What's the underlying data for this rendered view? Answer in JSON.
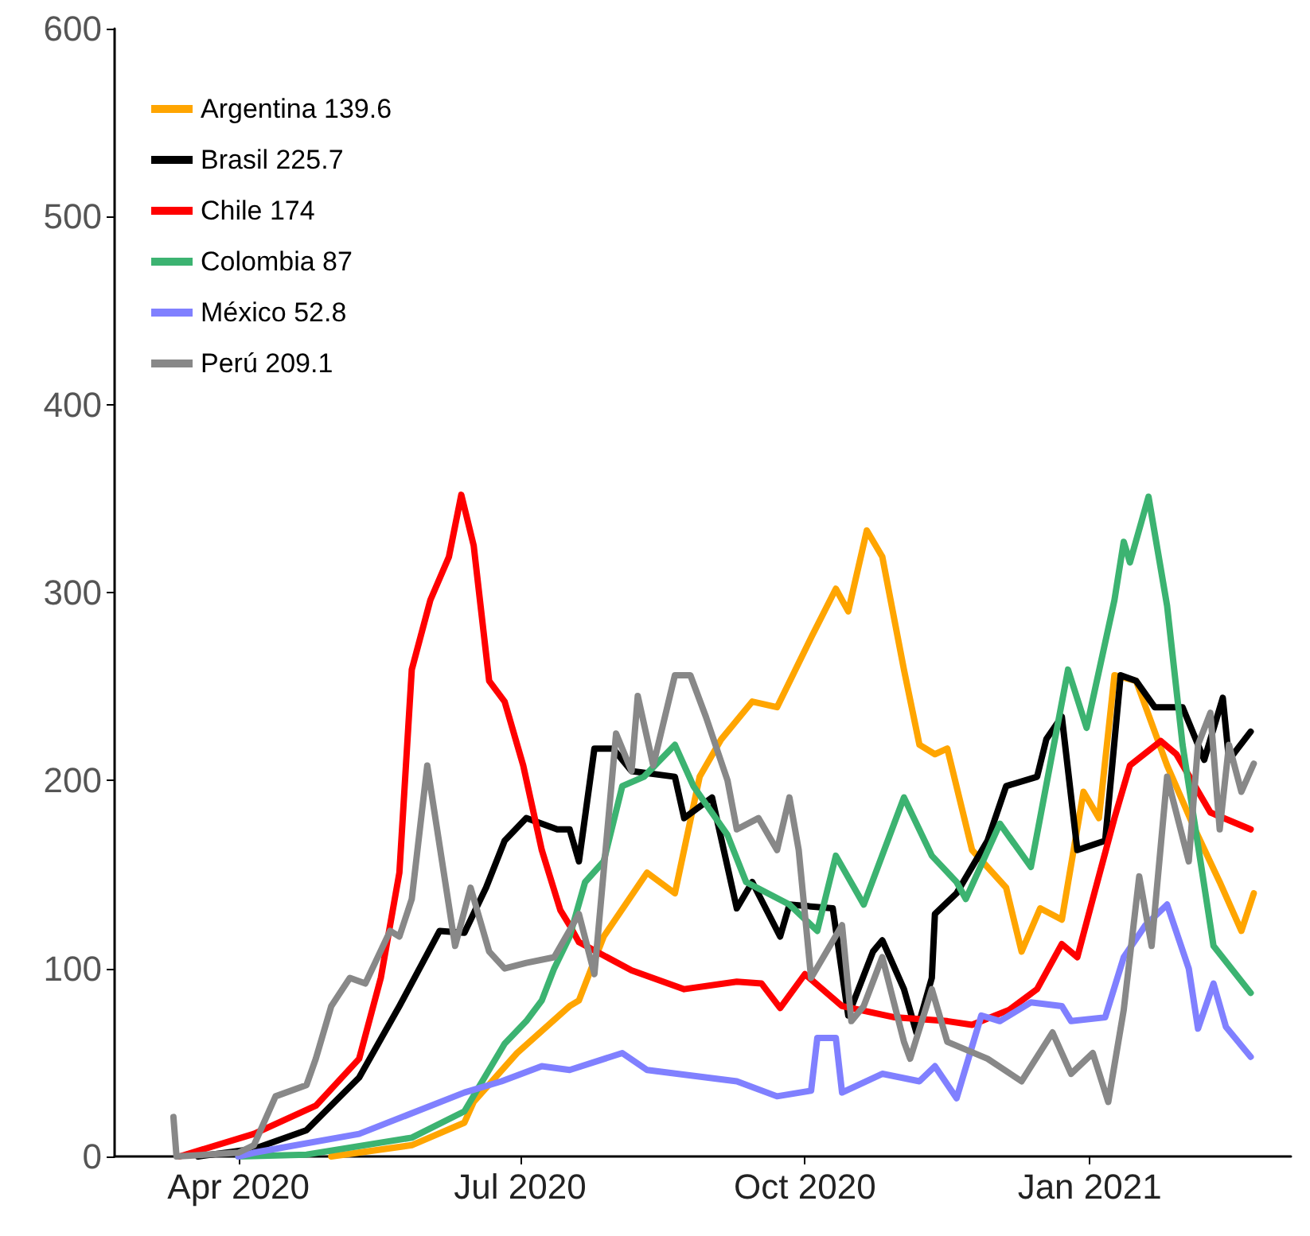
{
  "chart_data": {
    "type": "line",
    "xlim": [
      "2020-02-21",
      "2021-03-07"
    ],
    "ylim": [
      0,
      600
    ],
    "yticks": [
      0,
      100,
      200,
      300,
      400,
      500,
      600
    ],
    "xticks": [
      {
        "value": "2020-04-01",
        "label": "Apr 2020"
      },
      {
        "value": "2020-07-01",
        "label": "Jul 2020"
      },
      {
        "value": "2020-10-01",
        "label": "Oct 2020"
      },
      {
        "value": "2021-01-01",
        "label": "Jan 2021"
      }
    ],
    "grid": false,
    "legend": "top left",
    "marker": "none",
    "line_style": "solid",
    "series": [
      {
        "name": "Argentina 139.6",
        "color": "#ffa500",
        "x": [
          "2020-05-01",
          "2020-05-27",
          "2020-06-13",
          "2020-06-16",
          "2020-06-30",
          "2020-07-17",
          "2020-07-20",
          "2020-07-28",
          "2020-08-11",
          "2020-08-20",
          "2020-08-28",
          "2020-09-04",
          "2020-09-14",
          "2020-09-22",
          "2020-10-03",
          "2020-10-11",
          "2020-10-15",
          "2020-10-21",
          "2020-10-26",
          "2020-11-02",
          "2020-11-07",
          "2020-11-12",
          "2020-11-16",
          "2020-11-24",
          "2020-12-05",
          "2020-12-10",
          "2020-12-16",
          "2020-12-23",
          "2020-12-30",
          "2021-01-04",
          "2021-01-09",
          "2021-01-16",
          "2021-01-26",
          "2021-02-04",
          "2021-02-12",
          "2021-02-19",
          "2021-02-23"
        ],
        "values": [
          0,
          6,
          18,
          29,
          55,
          80,
          83,
          117,
          151,
          140,
          202,
          222,
          242,
          239,
          276,
          302,
          290,
          333,
          319,
          259,
          219,
          214,
          217,
          163,
          143,
          109,
          132,
          126,
          194,
          180,
          256,
          253,
          208,
          174,
          146,
          120,
          140
        ]
      },
      {
        "name": "Brasil 225.7",
        "color": "#000000",
        "x": [
          "2020-03-19",
          "2020-04-06",
          "2020-04-23",
          "2020-05-10",
          "2020-05-23",
          "2020-06-05",
          "2020-06-13",
          "2020-06-20",
          "2020-06-26",
          "2020-07-03",
          "2020-07-13",
          "2020-07-17",
          "2020-07-20",
          "2020-07-25",
          "2020-07-31",
          "2020-08-06",
          "2020-08-20",
          "2020-08-23",
          "2020-09-01",
          "2020-09-09",
          "2020-09-14",
          "2020-09-23",
          "2020-09-26",
          "2020-10-10",
          "2020-10-15",
          "2020-10-23",
          "2020-10-26",
          "2020-11-02",
          "2020-11-06",
          "2020-11-11",
          "2020-11-12",
          "2020-11-19",
          "2020-11-29",
          "2020-12-05",
          "2020-12-15",
          "2020-12-18",
          "2020-12-23",
          "2020-12-28",
          "2021-01-06",
          "2021-01-11",
          "2021-01-16",
          "2021-01-22",
          "2021-01-31",
          "2021-02-07",
          "2021-02-13",
          "2021-02-15",
          "2021-02-22"
        ],
        "values": [
          0,
          4,
          14,
          42,
          80,
          120,
          119,
          143,
          168,
          180,
          174,
          174,
          157,
          217,
          217,
          205,
          202,
          180,
          191,
          132,
          146,
          117,
          134,
          132,
          75,
          109,
          115,
          89,
          66,
          95,
          129,
          140,
          168,
          197,
          202,
          222,
          234,
          163,
          168,
          256,
          253,
          239,
          239,
          211,
          244,
          211,
          226
        ]
      },
      {
        "name": "Chile 174",
        "color": "#ff0000",
        "x": [
          "2020-03-13",
          "2020-04-06",
          "2020-04-26",
          "2020-05-10",
          "2020-05-17",
          "2020-05-23",
          "2020-05-27",
          "2020-06-02",
          "2020-06-08",
          "2020-06-12",
          "2020-06-16",
          "2020-06-21",
          "2020-06-26",
          "2020-07-02",
          "2020-07-08",
          "2020-07-14",
          "2020-07-17",
          "2020-07-20",
          "2020-08-06",
          "2020-08-23",
          "2020-09-09",
          "2020-09-17",
          "2020-09-23",
          "2020-10-01",
          "2020-10-13",
          "2020-10-30",
          "2020-11-16",
          "2020-11-24",
          "2020-12-06",
          "2020-12-15",
          "2020-12-23",
          "2020-12-28",
          "2021-01-02",
          "2021-01-09",
          "2021-01-14",
          "2021-01-24",
          "2021-01-29",
          "2021-02-09",
          "2021-02-22"
        ],
        "values": [
          0,
          12,
          27,
          52,
          95,
          151,
          259,
          296,
          319,
          352,
          325,
          253,
          242,
          208,
          163,
          131,
          123,
          114,
          99,
          89,
          93,
          92,
          79,
          97,
          80,
          74,
          72,
          70,
          78,
          89,
          113,
          106,
          137,
          180,
          208,
          221,
          214,
          183,
          174
        ]
      },
      {
        "name": "Colombia 87",
        "color": "#3cb371",
        "x": [
          "2020-04-01",
          "2020-04-23",
          "2020-05-27",
          "2020-06-13",
          "2020-06-26",
          "2020-07-03",
          "2020-07-08",
          "2020-07-12",
          "2020-07-17",
          "2020-07-22",
          "2020-07-28",
          "2020-08-03",
          "2020-08-10",
          "2020-08-20",
          "2020-08-26",
          "2020-09-06",
          "2020-09-12",
          "2020-09-26",
          "2020-10-05",
          "2020-10-11",
          "2020-10-20",
          "2020-11-02",
          "2020-11-11",
          "2020-11-19",
          "2020-11-22",
          "2020-12-03",
          "2020-12-13",
          "2020-12-25",
          "2020-12-31",
          "2021-01-09",
          "2021-01-12",
          "2021-01-14",
          "2021-01-20",
          "2021-01-26",
          "2021-01-31",
          "2021-02-10",
          "2021-02-22"
        ],
        "values": [
          0,
          1,
          10,
          24,
          60,
          72,
          83,
          100,
          117,
          146,
          157,
          197,
          202,
          219,
          197,
          171,
          146,
          134,
          120,
          160,
          134,
          191,
          160,
          146,
          137,
          177,
          154,
          259,
          228,
          296,
          327,
          316,
          351,
          293,
          219,
          112,
          87
        ]
      },
      {
        "name": "México 52.8",
        "color": "#8080ff",
        "x": [
          "2020-04-01",
          "2020-04-06",
          "2020-05-10",
          "2020-06-13",
          "2020-06-25",
          "2020-07-08",
          "2020-07-17",
          "2020-08-03",
          "2020-08-11",
          "2020-09-09",
          "2020-09-22",
          "2020-10-03",
          "2020-10-05",
          "2020-10-11",
          "2020-10-13",
          "2020-10-26",
          "2020-11-07",
          "2020-11-12",
          "2020-11-19",
          "2020-11-27",
          "2020-12-03",
          "2020-12-13",
          "2020-12-23",
          "2020-12-26",
          "2021-01-06",
          "2021-01-12",
          "2021-01-19",
          "2021-01-26",
          "2021-02-02",
          "2021-02-05",
          "2021-02-10",
          "2021-02-14",
          "2021-02-22"
        ],
        "values": [
          0,
          2,
          12,
          34,
          40,
          48,
          46,
          55,
          46,
          40,
          32,
          35,
          63,
          63,
          34,
          44,
          40,
          48,
          31,
          75,
          72,
          82,
          80,
          72,
          74,
          106,
          123,
          134,
          100,
          68,
          92,
          69,
          53
        ]
      },
      {
        "name": "Perú 209.1",
        "color": "#888888",
        "x": [
          "2020-03-11",
          "2020-03-12",
          "2020-04-01",
          "2020-04-06",
          "2020-04-13",
          "2020-04-23",
          "2020-04-26",
          "2020-05-01",
          "2020-05-07",
          "2020-05-12",
          "2020-05-20",
          "2020-05-23",
          "2020-05-27",
          "2020-06-01",
          "2020-06-10",
          "2020-06-15",
          "2020-06-21",
          "2020-06-26",
          "2020-07-03",
          "2020-07-12",
          "2020-07-20",
          "2020-07-25",
          "2020-08-01",
          "2020-08-06",
          "2020-08-08",
          "2020-08-13",
          "2020-08-20",
          "2020-08-25",
          "2020-08-30",
          "2020-09-06",
          "2020-09-09",
          "2020-09-16",
          "2020-09-22",
          "2020-09-26",
          "2020-09-29",
          "2020-10-03",
          "2020-10-13",
          "2020-10-16",
          "2020-10-20",
          "2020-10-26",
          "2020-11-02",
          "2020-11-04",
          "2020-11-11",
          "2020-11-16",
          "2020-11-29",
          "2020-12-10",
          "2020-12-20",
          "2020-12-26",
          "2021-01-02",
          "2021-01-07",
          "2021-01-12",
          "2021-01-17",
          "2021-01-21",
          "2021-01-26",
          "2021-02-02",
          "2021-02-05",
          "2021-02-09",
          "2021-02-12",
          "2021-02-15",
          "2021-02-19",
          "2021-02-23"
        ],
        "values": [
          21,
          0,
          2,
          6,
          32,
          38,
          52,
          80,
          95,
          92,
          120,
          117,
          137,
          208,
          112,
          143,
          109,
          100,
          103,
          106,
          129,
          97,
          225,
          205,
          245,
          208,
          256,
          256,
          234,
          200,
          174,
          180,
          163,
          191,
          163,
          95,
          123,
          72,
          80,
          106,
          61,
          52,
          89,
          61,
          52,
          40,
          66,
          44,
          55,
          29,
          78,
          149,
          112,
          202,
          157,
          219,
          236,
          174,
          219,
          194,
          209
        ]
      }
    ]
  }
}
